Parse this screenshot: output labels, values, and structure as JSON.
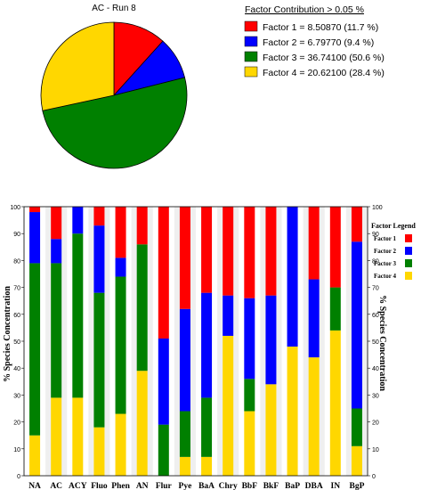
{
  "chart_data": [
    {
      "type": "pie",
      "title": "AC - Run 8",
      "legend_title": "Factor Contribution > 0.05 %",
      "legend_position": "top-right",
      "slices": [
        {
          "label": "Factor 1 = 8.50870 (11.7 %)",
          "value": 11.7,
          "color": "#ff0000"
        },
        {
          "label": "Factor 2 = 6.79770 (9.4 %)",
          "value": 9.4,
          "color": "#0000ff"
        },
        {
          "label": "Factor 3 = 36.74100 (50.6 %)",
          "value": 50.6,
          "color": "#008000"
        },
        {
          "label": "Factor 4 = 20.62100 (28.4 %)",
          "value": 28.4,
          "color": "#ffd700"
        }
      ]
    },
    {
      "type": "bar",
      "stacked": true,
      "ylabel": "% Species Concentration",
      "ylabel_right": "% Species Concentration",
      "ylim": [
        0,
        100
      ],
      "yticks": [
        "0",
        "10",
        "20",
        "30",
        "40",
        "50",
        "60",
        "70",
        "80",
        "90",
        "100"
      ],
      "legend_title": "Factor Legend",
      "legend_position": "right",
      "categories": [
        "NA",
        "AC",
        "ACY",
        "Fluo",
        "Phen",
        "AN",
        "Flur",
        "Pye",
        "BaA",
        "Chry",
        "BbF",
        "BkF",
        "BaP",
        "DBA",
        "IN",
        "BgP"
      ],
      "series": [
        {
          "name": "Factor 4",
          "color": "#ffd700",
          "values": [
            15,
            29,
            29,
            18,
            23,
            39,
            0,
            7,
            7,
            52,
            24,
            34,
            48,
            44,
            54,
            11
          ]
        },
        {
          "name": "Factor 3",
          "color": "#008000",
          "values": [
            64,
            50,
            61,
            50,
            51,
            47,
            19,
            17,
            22,
            0,
            12,
            0,
            0,
            0,
            16,
            14
          ]
        },
        {
          "name": "Factor 2",
          "color": "#0000ff",
          "values": [
            19,
            9,
            10,
            25,
            7,
            0,
            32,
            38,
            39,
            15,
            30,
            33,
            52,
            29,
            0,
            62
          ]
        },
        {
          "name": "Factor 1",
          "color": "#ff0000",
          "values": [
            2,
            12,
            0,
            7,
            19,
            14,
            49,
            38,
            32,
            33,
            34,
            33,
            0,
            27,
            30,
            13
          ]
        }
      ]
    }
  ]
}
